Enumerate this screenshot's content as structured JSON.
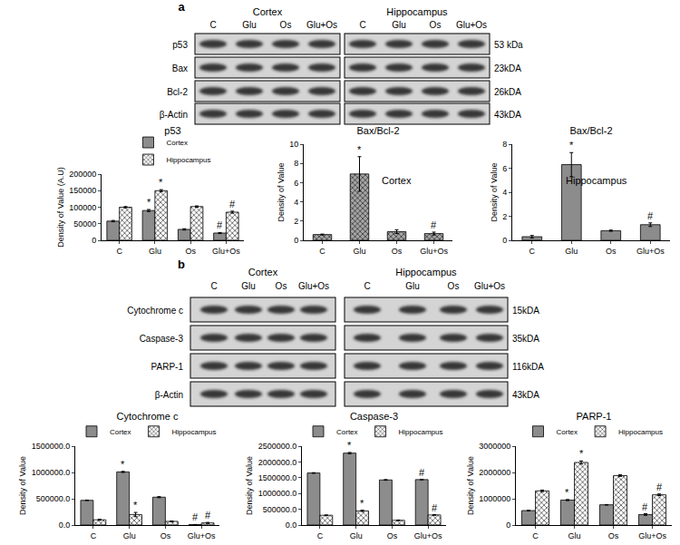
{
  "blots": [
    {
      "label": "a",
      "groups": [
        "Cortex",
        "Hippocampus"
      ],
      "lanes": [
        "C",
        "Glu",
        "Os",
        "Glu+Os"
      ],
      "rows": [
        {
          "name": "p53",
          "size": "53 kDa"
        },
        {
          "name": "Bax",
          "size": "23kDA"
        },
        {
          "name": "Bcl-2",
          "size": "26kDA"
        },
        {
          "name": "β-Actin",
          "size": "43kDA"
        }
      ]
    },
    {
      "label": "b",
      "groups": [
        "Cortex",
        "Hippocampus"
      ],
      "lanes": [
        "C",
        "Glu",
        "Os",
        "Glu+Os"
      ],
      "rows": [
        {
          "name": "Cytochrome c",
          "size": "15kDA"
        },
        {
          "name": "Caspase-3",
          "size": "35kDA"
        },
        {
          "name": "PARP-1",
          "size": "116kDA"
        },
        {
          "name": "β-Actin",
          "size": "43kDA"
        }
      ]
    }
  ],
  "chart_data": [
    {
      "type": "bar",
      "title": "p53",
      "ylabel": "Density of Value (A.U)",
      "categories": [
        "C",
        "Glu",
        "Os",
        "Glu+Os"
      ],
      "series": [
        {
          "name": "Cortex",
          "color": "#8c8c8c",
          "marker": "solid",
          "values": [
            58000,
            90000,
            33000,
            22000
          ],
          "errors": [
            2000,
            3000,
            2000,
            1500
          ],
          "significance": [
            null,
            "*",
            null,
            "#"
          ]
        },
        {
          "name": "Hippocampus",
          "color": "#ffffff",
          "marker": "crosshatch",
          "values": [
            100000,
            150000,
            102000,
            85000
          ],
          "errors": [
            2000,
            3000,
            2000,
            3000
          ],
          "significance": [
            null,
            "*",
            null,
            "#"
          ]
        }
      ],
      "ylim": [
        0,
        200000
      ],
      "yticks": [
        0,
        50000,
        100000,
        150000,
        200000
      ],
      "legend": "top"
    },
    {
      "type": "bar",
      "title": "Bax/Bcl-2",
      "ylabel": "Density of Value",
      "categories": [
        "C",
        "Glu",
        "Os",
        "Glu+Os"
      ],
      "annotations": [
        "Cortex"
      ],
      "series": [
        {
          "color": "#a6a6a6",
          "marker": "crosshatch",
          "values": [
            0.6,
            6.9,
            0.9,
            0.7
          ],
          "errors": [
            0.05,
            1.8,
            0.2,
            0.15
          ],
          "significance": [
            null,
            "*",
            null,
            "#"
          ]
        }
      ],
      "ylim": [
        0,
        10
      ],
      "yticks": [
        0,
        2,
        4,
        6,
        8,
        10
      ]
    },
    {
      "type": "bar",
      "title": "Bax/Bcl-2",
      "ylabel": "Density of Value",
      "categories": [
        "C",
        "Glu",
        "Os",
        "Glu+Os"
      ],
      "annotations": [
        "Hippocampus"
      ],
      "series": [
        {
          "color": "#8c8c8c",
          "marker": "solid",
          "values": [
            0.3,
            6.3,
            0.8,
            1.3
          ],
          "errors": [
            0.1,
            1.0,
            0.05,
            0.15
          ],
          "significance": [
            null,
            "*",
            null,
            "#"
          ]
        }
      ],
      "ylim": [
        0,
        8
      ],
      "yticks": [
        0,
        2,
        4,
        6,
        8
      ]
    },
    {
      "type": "bar",
      "title": "Cytochrome c",
      "ylabel": "Density of Value",
      "categories": [
        "C",
        "Glu",
        "Os",
        "Glu+Os"
      ],
      "series": [
        {
          "name": "Cortex",
          "color": "#8c8c8c",
          "marker": "solid",
          "values": [
            470000,
            1010000,
            530000,
            8000
          ],
          "errors": [
            5000,
            10000,
            10000,
            2000
          ],
          "significance": [
            null,
            "*",
            null,
            "#"
          ]
        },
        {
          "name": "Hippocampus",
          "color": "#ffffff",
          "marker": "crosshatch",
          "values": [
            100000,
            200000,
            70000,
            40000
          ],
          "errors": [
            10000,
            40000,
            8000,
            10000
          ],
          "significance": [
            null,
            "*",
            null,
            "#"
          ]
        }
      ],
      "ylim": [
        0,
        1500000
      ],
      "yticks": [
        {
          "value": 0,
          "label": "0.0"
        },
        {
          "value": 500000,
          "label": "500000.0"
        },
        {
          "value": 1000000,
          "label": "1000000.0"
        },
        {
          "value": 1500000,
          "label": "1500000.0"
        }
      ],
      "legend": "top"
    },
    {
      "type": "bar",
      "title": "Caspase-3",
      "ylabel": "Density of Value",
      "categories": [
        "C",
        "Glu",
        "Os",
        "Glu+Os"
      ],
      "series": [
        {
          "name": "Cortex",
          "color": "#8c8c8c",
          "marker": "solid",
          "values": [
            1650000,
            2280000,
            1430000,
            1440000
          ],
          "errors": [
            10000,
            20000,
            10000,
            10000
          ],
          "significance": [
            null,
            "*",
            null,
            "#"
          ]
        },
        {
          "name": "Hippocampus",
          "color": "#ffffff",
          "marker": "crosshatch",
          "values": [
            310000,
            450000,
            150000,
            320000
          ],
          "errors": [
            10000,
            20000,
            10000,
            10000
          ],
          "significance": [
            null,
            "*",
            null,
            "#"
          ]
        }
      ],
      "ylim": [
        0,
        2500000
      ],
      "yticks": [
        {
          "value": 0,
          "label": "0.0"
        },
        {
          "value": 500000,
          "label": "500000.0"
        },
        {
          "value": 1000000,
          "label": "1000000.0"
        },
        {
          "value": 1500000,
          "label": "1500000.0"
        },
        {
          "value": 2000000,
          "label": "2000000.0"
        },
        {
          "value": 2500000,
          "label": "2500000.0"
        }
      ],
      "legend": "top"
    },
    {
      "type": "bar",
      "title": "PARP-1",
      "ylabel": "Density of Value",
      "categories": [
        "C",
        "Glu",
        "Os",
        "Glu+Os"
      ],
      "series": [
        {
          "name": "Cortex",
          "color": "#8c8c8c",
          "marker": "solid",
          "values": [
            550000,
            950000,
            770000,
            400000
          ],
          "errors": [
            10000,
            20000,
            10000,
            30000
          ],
          "significance": [
            null,
            "*",
            null,
            "#"
          ]
        },
        {
          "name": "Hippocampus",
          "color": "#ffffff",
          "marker": "crosshatch",
          "values": [
            1300000,
            2380000,
            1880000,
            1150000
          ],
          "errors": [
            30000,
            60000,
            30000,
            30000
          ],
          "significance": [
            null,
            "*",
            null,
            "#"
          ]
        }
      ],
      "ylim": [
        0,
        3000000
      ],
      "yticks": [
        0,
        1000000,
        2000000,
        3000000
      ],
      "legend": "top"
    }
  ]
}
